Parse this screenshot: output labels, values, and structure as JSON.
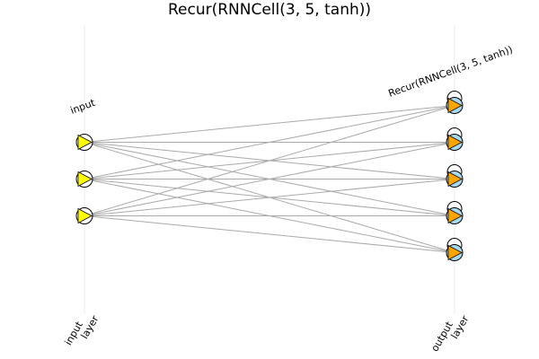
{
  "title": "Recur(RNNCell(3, 5, tanh))",
  "layers": [
    {
      "name": "input",
      "axis_label_line1": "input",
      "axis_label_line2": "layer",
      "node_count": 3,
      "node_fill": "#ffffff",
      "arrow_fill": "#ffff00",
      "recurrent": false
    },
    {
      "name": "Recur(RNNCell(3, 5, tanh))",
      "axis_label_line1": "output",
      "axis_label_line2": "layer",
      "node_count": 5,
      "node_fill": "#a6d8f0",
      "arrow_fill": "#ffa500",
      "recurrent": true
    }
  ],
  "connections": "fully-connected",
  "connection_color": "#aaaaaa"
}
